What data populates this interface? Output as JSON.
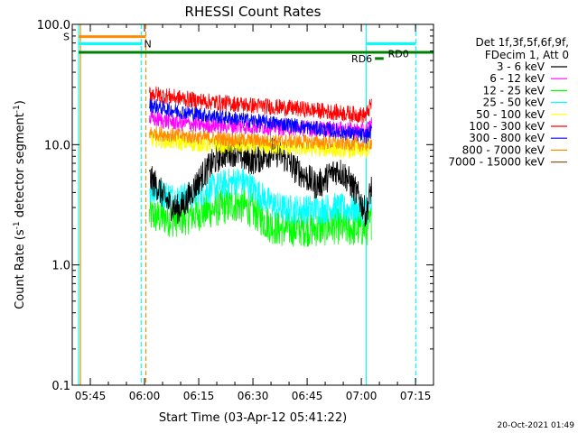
{
  "chart_data": {
    "type": "line",
    "title": "RHESSI Count Rates",
    "xlabel": "Start Time (03-Apr-12 05:41:22)",
    "ylabel_parts": [
      "Count Rate (s",
      "-1",
      " detector segment",
      "-1",
      ")"
    ],
    "yscale": "log",
    "ylim": [
      0.1,
      100.0
    ],
    "xlim_minutes": [
      -1.37,
      98.6
    ],
    "x_ticks": [
      {
        "label": "05:45",
        "minutes": 3.63
      },
      {
        "label": "06:00",
        "minutes": 18.63
      },
      {
        "label": "06:15",
        "minutes": 33.63
      },
      {
        "label": "06:30",
        "minutes": 48.63
      },
      {
        "label": "06:45",
        "minutes": 63.63
      },
      {
        "label": "07:00",
        "minutes": 78.63
      },
      {
        "label": "07:15",
        "minutes": 93.63
      }
    ],
    "y_ticks": [
      {
        "label": "0.1",
        "value": 0.1
      },
      {
        "label": "1.0",
        "value": 1.0
      },
      {
        "label": "10.0",
        "value": 10.0
      },
      {
        "label": "100.0",
        "value": 100.0
      }
    ],
    "legend_header": [
      "Det 1f,3f,5f,6f,9f,",
      "FDecim 1, Att 0"
    ],
    "legend_placement": "right",
    "series": [
      {
        "name": "3 - 6 keV",
        "color": "#000000",
        "x": [
          20,
          22,
          24,
          26,
          28,
          30,
          32,
          34,
          36,
          38,
          40,
          42,
          44,
          46,
          48,
          50,
          52,
          54,
          56,
          58,
          60,
          62,
          64,
          66,
          68,
          70,
          72,
          74,
          76,
          78,
          80,
          81.5
        ],
        "y": [
          5.2,
          4.6,
          3.6,
          3.1,
          2.9,
          3.3,
          4.2,
          5.2,
          6.2,
          7.3,
          8.2,
          8.8,
          8.6,
          7.8,
          7.4,
          7.6,
          8.1,
          8.8,
          8.4,
          7.4,
          6.4,
          5.8,
          5.2,
          4.6,
          4.9,
          5.6,
          6.2,
          5.6,
          4.6,
          3.6,
          2.6,
          4.5
        ]
      },
      {
        "name": "6 - 12 keV",
        "color": "#ff00ff",
        "x": [
          20,
          24,
          28,
          32,
          36,
          40,
          44,
          48,
          52,
          56,
          60,
          64,
          68,
          72,
          76,
          80,
          81.5
        ],
        "y": [
          16.5,
          15.8,
          15.2,
          14.8,
          14.6,
          14.4,
          14.3,
          14.2,
          14.1,
          14.0,
          13.8,
          13.6,
          13.5,
          13.4,
          13.2,
          13.0,
          15.0
        ]
      },
      {
        "name": "12 - 25 keV",
        "color": "#00ff00",
        "x": [
          20,
          22,
          24,
          26,
          28,
          30,
          32,
          34,
          36,
          38,
          40,
          42,
          44,
          46,
          48,
          50,
          52,
          54,
          56,
          58,
          60,
          62,
          64,
          66,
          68,
          70,
          72,
          74,
          76,
          78,
          80,
          81.5
        ],
        "y": [
          2.6,
          2.5,
          2.5,
          2.4,
          2.4,
          2.5,
          2.6,
          2.7,
          2.8,
          2.9,
          3.0,
          3.1,
          3.2,
          3.1,
          2.9,
          2.6,
          2.3,
          2.1,
          2.0,
          2.0,
          2.0,
          2.0,
          2.0,
          2.0,
          2.0,
          2.1,
          2.1,
          2.0,
          2.0,
          2.0,
          2.0,
          2.3
        ]
      },
      {
        "name": "25 - 50 keV",
        "color": "#00ffff",
        "x": [
          20,
          22,
          24,
          26,
          28,
          30,
          32,
          34,
          36,
          38,
          40,
          42,
          44,
          46,
          48,
          50,
          52,
          54,
          56,
          58,
          60,
          62,
          64,
          66,
          68,
          70,
          72,
          74,
          76,
          78,
          80,
          81.5
        ],
        "y": [
          4.3,
          4.1,
          3.9,
          3.7,
          3.6,
          3.7,
          3.8,
          4.0,
          4.2,
          4.4,
          4.6,
          4.8,
          5.0,
          4.9,
          4.5,
          4.0,
          3.5,
          3.2,
          3.0,
          2.9,
          2.9,
          2.9,
          2.9,
          2.9,
          2.9,
          3.0,
          3.0,
          2.9,
          2.9,
          2.9,
          2.8,
          3.2
        ]
      },
      {
        "name": "50 - 100 keV",
        "color": "#ffff00",
        "x": [
          20,
          24,
          28,
          32,
          36,
          40,
          44,
          48,
          52,
          56,
          60,
          64,
          68,
          72,
          76,
          80,
          81.5
        ],
        "y": [
          11.2,
          10.8,
          10.5,
          10.2,
          10.0,
          9.9,
          9.8,
          9.7,
          9.6,
          9.5,
          9.4,
          9.3,
          9.2,
          9.1,
          9.0,
          8.9,
          9.5
        ]
      },
      {
        "name": "100 - 300 keV",
        "color": "#ff0000",
        "x": [
          20,
          24,
          28,
          32,
          36,
          40,
          44,
          48,
          52,
          56,
          60,
          64,
          68,
          72,
          76,
          80,
          81.5
        ],
        "y": [
          27.0,
          25.5,
          24.5,
          23.5,
          22.8,
          22.2,
          21.8,
          21.2,
          20.8,
          20.4,
          20.0,
          19.5,
          19.0,
          18.5,
          18.0,
          17.5,
          22.0
        ]
      },
      {
        "name": "300 - 800 keV",
        "color": "#0000ff",
        "x": [
          20,
          24,
          28,
          32,
          36,
          40,
          44,
          48,
          52,
          56,
          60,
          64,
          68,
          72,
          76,
          80,
          81.5
        ],
        "y": [
          21.5,
          20.0,
          19.0,
          18.2,
          17.5,
          16.9,
          16.4,
          15.9,
          15.4,
          15.0,
          14.5,
          13.9,
          13.4,
          12.9,
          12.4,
          11.8,
          13.0
        ]
      },
      {
        "name": "800 - 7000 keV",
        "color": "#ff8c00",
        "x": [
          20,
          24,
          28,
          32,
          36,
          40,
          44,
          48,
          52,
          56,
          60,
          64,
          68,
          72,
          76,
          80,
          81.5
        ],
        "y": [
          12.5,
          12.2,
          11.9,
          11.6,
          11.4,
          11.2,
          11.0,
          10.9,
          10.8,
          10.7,
          10.6,
          10.5,
          10.4,
          10.3,
          10.2,
          10.0,
          10.5
        ]
      },
      {
        "name": "7000 - 15000 keV",
        "color": "#8b5a2b",
        "x": [],
        "y": []
      }
    ],
    "annotations": [
      {
        "label": "S",
        "color": "#ff8c00",
        "x_minutes": [
          0.4,
          19.0
        ],
        "value": 79.0
      },
      {
        "label": "N",
        "color": "#00ffff",
        "x_minutes": [
          0.4,
          18.0
        ],
        "value": 69.0
      },
      {
        "label": "",
        "color": "#00ffff",
        "x_minutes": [
          80.0,
          93.7
        ],
        "value": 69.0
      },
      {
        "label": "",
        "color": "#008000",
        "x_minutes": [
          0.4,
          98.6
        ],
        "value": 58.5
      },
      {
        "label": "RD6",
        "color": "#008000",
        "x_minutes": [
          82.4,
          84.8
        ],
        "value": 52.0
      },
      {
        "label": "RD0",
        "color": "",
        "x_minutes": [],
        "value": 57.0
      }
    ],
    "vertical_markers": [
      {
        "color": "#00ffff",
        "style": "solid",
        "minutes": 0.4
      },
      {
        "color": "#ff8c00",
        "style": "solid",
        "minutes": 0.9
      },
      {
        "color": "#00ffff",
        "style": "dashed",
        "minutes": 17.7
      },
      {
        "color": "#ff8c00",
        "style": "dashed",
        "minutes": 19.0
      },
      {
        "color": "#00ffff",
        "style": "solid",
        "minutes": 80.0
      },
      {
        "color": "#00ffff",
        "style": "dashed",
        "minutes": 93.7
      }
    ],
    "grid": false
  },
  "footer": {
    "timestamp": "20-Oct-2021 01:49"
  }
}
